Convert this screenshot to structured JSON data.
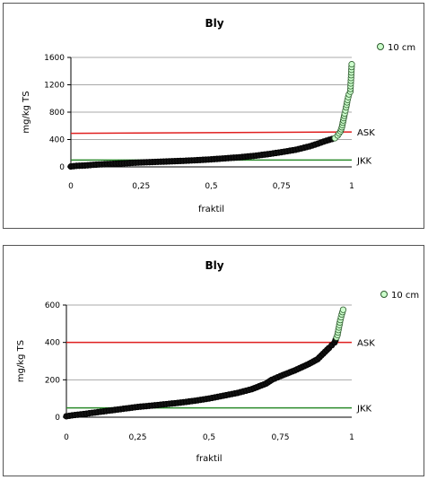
{
  "chart_data": [
    {
      "type": "scatter",
      "title": "Bly",
      "xlabel": "fraktil",
      "ylabel": "mg/kg TS",
      "xlim": [
        0,
        1
      ],
      "ylim": [
        0,
        1600
      ],
      "xticks": [
        "0",
        "0,25",
        "0,5",
        "0,75",
        "1"
      ],
      "xtick_values": [
        0,
        0.25,
        0.5,
        0.75,
        1
      ],
      "yticks": [
        "0",
        "400",
        "800",
        "1200",
        "1600"
      ],
      "ytick_values": [
        0,
        400,
        800,
        1200,
        1600
      ],
      "grid": true,
      "legend_position": "top-right",
      "series": [
        {
          "name": "10 cm",
          "marker_color": "#ccffcc",
          "dark_color": "#111111",
          "points": [
            [
              0,
              5
            ],
            [
              0.02,
              15
            ],
            [
              0.05,
              20
            ],
            [
              0.08,
              30
            ],
            [
              0.1,
              35
            ],
            [
              0.15,
              45
            ],
            [
              0.2,
              55
            ],
            [
              0.25,
              65
            ],
            [
              0.3,
              72
            ],
            [
              0.35,
              80
            ],
            [
              0.4,
              88
            ],
            [
              0.45,
              98
            ],
            [
              0.5,
              110
            ],
            [
              0.55,
              125
            ],
            [
              0.6,
              140
            ],
            [
              0.65,
              160
            ],
            [
              0.7,
              185
            ],
            [
              0.75,
              215
            ],
            [
              0.8,
              250
            ],
            [
              0.85,
              300
            ],
            [
              0.88,
              340
            ],
            [
              0.9,
              370
            ],
            [
              0.92,
              395
            ],
            [
              0.94,
              420
            ],
            [
              0.95,
              460
            ],
            [
              0.96,
              520
            ],
            [
              0.965,
              580
            ],
            [
              0.97,
              680
            ],
            [
              0.975,
              780
            ],
            [
              0.98,
              870
            ],
            [
              0.985,
              980
            ],
            [
              0.99,
              1060
            ],
            [
              0.995,
              1100
            ],
            [
              1.0,
              1500
            ]
          ],
          "green_from_x": 0.93
        }
      ],
      "reference_lines": [
        {
          "label": "ASK",
          "y_start": 490,
          "y_end": 510,
          "color": "#e02020"
        },
        {
          "label": "JKK",
          "y_start": 100,
          "y_end": 100,
          "color": "#2a8a2a"
        }
      ]
    },
    {
      "type": "scatter",
      "title": "Bly",
      "xlabel": "fraktil",
      "ylabel": "mg/kg TS",
      "xlim": [
        0,
        1
      ],
      "ylim": [
        0,
        600
      ],
      "xticks": [
        "0",
        "0,25",
        "0,5",
        "0,75",
        "1"
      ],
      "xtick_values": [
        0,
        0.25,
        0.5,
        0.75,
        1
      ],
      "yticks": [
        "0",
        "200",
        "400",
        "600"
      ],
      "ytick_values": [
        0,
        200,
        400,
        600
      ],
      "grid": true,
      "legend_position": "top-right",
      "series": [
        {
          "name": "10 cm",
          "marker_color": "#ccffcc",
          "dark_color": "#111111",
          "points": [
            [
              0,
              5
            ],
            [
              0.02,
              10
            ],
            [
              0.05,
              15
            ],
            [
              0.1,
              25
            ],
            [
              0.15,
              35
            ],
            [
              0.2,
              45
            ],
            [
              0.25,
              55
            ],
            [
              0.3,
              62
            ],
            [
              0.35,
              70
            ],
            [
              0.4,
              78
            ],
            [
              0.45,
              88
            ],
            [
              0.5,
              100
            ],
            [
              0.55,
              115
            ],
            [
              0.6,
              130
            ],
            [
              0.65,
              150
            ],
            [
              0.7,
              180
            ],
            [
              0.72,
              200
            ],
            [
              0.75,
              220
            ],
            [
              0.8,
              250
            ],
            [
              0.85,
              285
            ],
            [
              0.88,
              310
            ],
            [
              0.9,
              340
            ],
            [
              0.92,
              370
            ],
            [
              0.93,
              385
            ],
            [
              0.94,
              400
            ],
            [
              0.95,
              440
            ],
            [
              0.955,
              480
            ],
            [
              0.96,
              520
            ],
            [
              0.965,
              550
            ],
            [
              0.97,
              575
            ]
          ],
          "green_from_x": 0.945
        }
      ],
      "reference_lines": [
        {
          "label": "ASK",
          "y_start": 400,
          "y_end": 400,
          "color": "#e02020"
        },
        {
          "label": "JKK",
          "y_start": 50,
          "y_end": 50,
          "color": "#2a8a2a"
        }
      ]
    }
  ]
}
